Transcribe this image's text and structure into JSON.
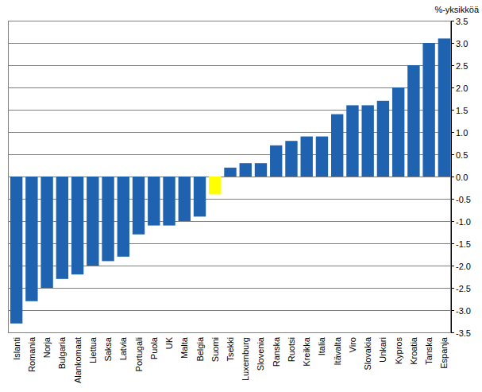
{
  "chart_data": {
    "type": "bar",
    "y_label": "%-yksikköä",
    "categories": [
      "Islanti",
      "Romania",
      "Norja",
      "Bulgaria",
      "Alankomaat",
      "Liettua",
      "Saksa",
      "Latvia",
      "Portugali",
      "Puola",
      "UK",
      "Malta",
      "Belgia",
      "Suomi",
      "Tsekki",
      "Luxemburg",
      "Slovenia",
      "Ranska",
      "Ruotsi",
      "Kreikka",
      "Italia",
      "Itävalta",
      "Viro",
      "Slovakia",
      "Unkari",
      "Kypros",
      "Kroatia",
      "Tanska",
      "Espanja"
    ],
    "values": [
      -3.3,
      -2.8,
      -2.5,
      -2.3,
      -2.2,
      -2.0,
      -1.9,
      -1.8,
      -1.3,
      -1.1,
      -1.1,
      -1.0,
      -0.9,
      -0.4,
      0.2,
      0.3,
      0.3,
      0.7,
      0.8,
      0.9,
      0.9,
      1.4,
      1.6,
      1.6,
      1.7,
      2.0,
      2.5,
      3.0,
      3.1
    ],
    "colors": [
      "#1f63b0",
      "#1f63b0",
      "#1f63b0",
      "#1f63b0",
      "#1f63b0",
      "#1f63b0",
      "#1f63b0",
      "#1f63b0",
      "#1f63b0",
      "#1f63b0",
      "#1f63b0",
      "#1f63b0",
      "#1f63b0",
      "#ffff00",
      "#1f63b0",
      "#1f63b0",
      "#1f63b0",
      "#1f63b0",
      "#1f63b0",
      "#1f63b0",
      "#1f63b0",
      "#1f63b0",
      "#1f63b0",
      "#1f63b0",
      "#1f63b0",
      "#1f63b0",
      "#1f63b0",
      "#1f63b0",
      "#1f63b0"
    ],
    "ylim": [
      -3.5,
      3.5
    ],
    "yticks": [
      -3.5,
      {
        "value": -3,
        "label": "-3.0"
      },
      -2.5,
      {
        "value": -2,
        "label": "-2.0"
      },
      -1.5,
      {
        "value": -1,
        "label": "-1.0"
      },
      -0.5,
      {
        "value": 0,
        "label": "0.0"
      },
      0.5,
      {
        "value": 1,
        "label": "1.0"
      },
      1.5,
      {
        "value": 2,
        "label": "2.0"
      },
      2.5,
      {
        "value": 3,
        "label": "3.0"
      },
      3.5
    ],
    "grid": true
  }
}
